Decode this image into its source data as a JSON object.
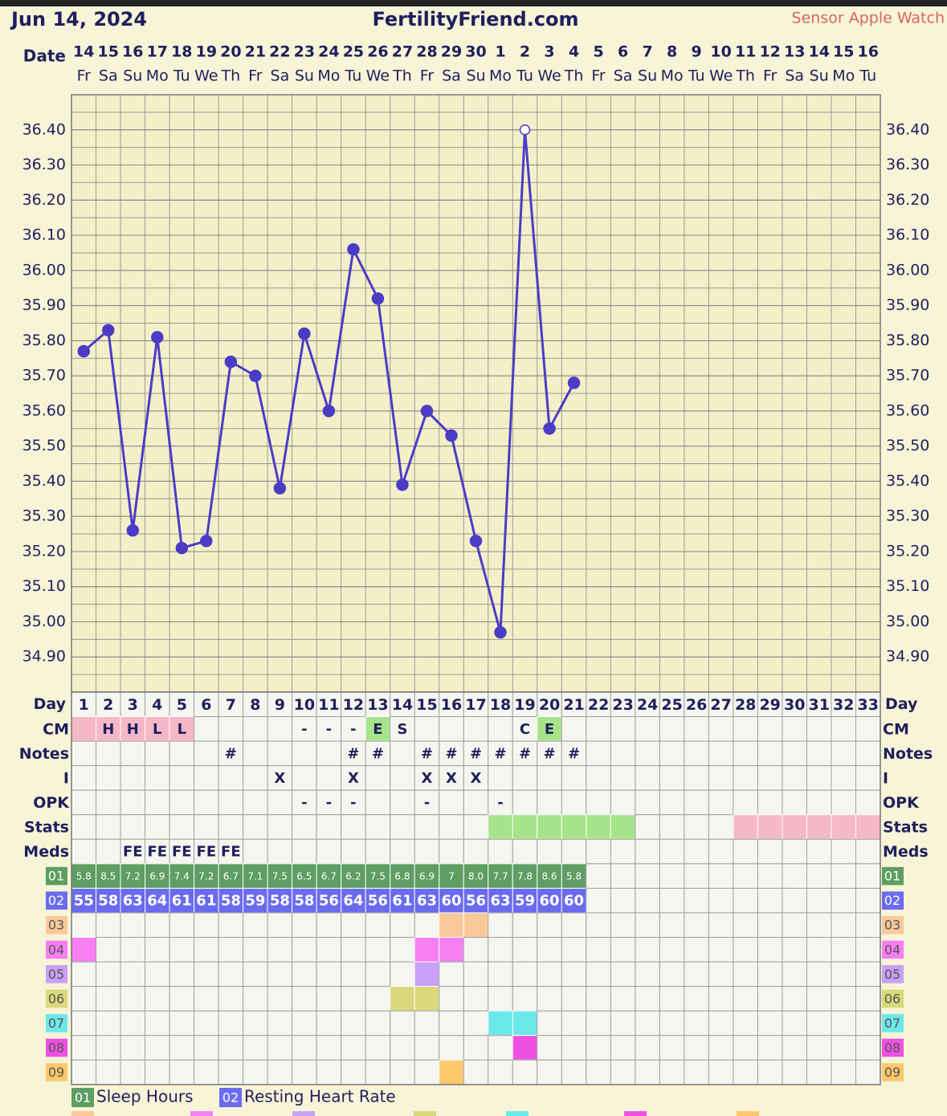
{
  "header": {
    "date": "Jun 14, 2024",
    "site": "FertilityFriend.com",
    "sensor": "Sensor Apple Watch"
  },
  "chart_data": {
    "type": "line",
    "x_label": "Date",
    "dates": [
      14,
      15,
      16,
      17,
      18,
      19,
      20,
      21,
      22,
      23,
      24,
      25,
      26,
      27,
      28,
      29,
      30,
      1,
      2,
      3,
      4,
      5,
      6,
      7,
      8,
      9,
      10,
      11,
      12,
      13,
      14,
      15,
      16
    ],
    "weekdays": [
      "Fr",
      "Sa",
      "Su",
      "Mo",
      "Tu",
      "We",
      "Th",
      "Fr",
      "Sa",
      "Su",
      "Mo",
      "Tu",
      "We",
      "Th",
      "Fr",
      "Sa",
      "Su",
      "Mo",
      "Tu",
      "We",
      "Th",
      "Fr",
      "Sa",
      "Su",
      "Mo",
      "Tu",
      "We",
      "Th",
      "Fr",
      "Sa",
      "Su",
      "Mo",
      "Tu"
    ],
    "ylim": [
      34.8,
      36.5
    ],
    "yticks": [
      {
        "value": 34.9,
        "label": "34.90"
      },
      {
        "value": 35.0,
        "label": "35.00"
      },
      {
        "value": 35.1,
        "label": "35.10"
      },
      {
        "value": 35.2,
        "label": "35.20"
      },
      {
        "value": 35.3,
        "label": "35.30"
      },
      {
        "value": 35.4,
        "label": "35.40"
      },
      {
        "value": 35.5,
        "label": "35.50"
      },
      {
        "value": 35.6,
        "label": "35.60"
      },
      {
        "value": 35.7,
        "label": "35.70"
      },
      {
        "value": 35.8,
        "label": "35.80"
      },
      {
        "value": 35.9,
        "label": "35.90"
      },
      {
        "value": 36.0,
        "label": "36.00"
      },
      {
        "value": 36.1,
        "label": "36.10"
      },
      {
        "value": 36.2,
        "label": "36.20"
      },
      {
        "value": 36.3,
        "label": "36.30"
      },
      {
        "value": 36.4,
        "label": "36.40"
      }
    ],
    "grid": true,
    "series": [
      {
        "color": "#4b3cc6",
        "open_markers": [
          18
        ],
        "values": [
          35.77,
          35.83,
          35.26,
          35.81,
          35.21,
          35.23,
          35.74,
          35.7,
          35.38,
          35.82,
          35.6,
          36.06,
          35.92,
          35.39,
          35.6,
          35.53,
          35.23,
          34.97,
          36.4,
          35.55,
          35.68,
          null,
          null,
          null,
          null,
          null,
          null,
          null,
          null,
          null,
          null,
          null,
          null
        ]
      }
    ]
  },
  "table": {
    "day_label": "Day",
    "days": [
      1,
      2,
      3,
      4,
      5,
      6,
      7,
      8,
      9,
      10,
      11,
      12,
      13,
      14,
      15,
      16,
      17,
      18,
      19,
      20,
      21,
      22,
      23,
      24,
      25,
      26,
      27,
      28,
      29,
      30,
      31,
      32,
      33
    ],
    "rows": [
      {
        "label": "CM",
        "cells": [
          null,
          "H",
          "H",
          "L",
          "L",
          null,
          null,
          null,
          null,
          "-",
          "-",
          "-",
          "E",
          "S",
          null,
          null,
          null,
          null,
          "C",
          "E",
          null,
          null,
          null,
          null,
          null,
          null,
          null,
          null,
          null,
          null,
          null,
          null,
          null
        ],
        "fills": [
          "#f5b8c9",
          "#f5b8c9",
          "#f5b8c9",
          "#f5b8c9",
          "#f5b8c9",
          null,
          null,
          null,
          null,
          null,
          null,
          null,
          "#a6e38a",
          null,
          null,
          null,
          null,
          null,
          null,
          "#a6e38a",
          null,
          null,
          null,
          null,
          null,
          null,
          null,
          null,
          null,
          null,
          null,
          null,
          null
        ]
      },
      {
        "label": "Notes",
        "cells": [
          null,
          null,
          null,
          null,
          null,
          null,
          "#",
          null,
          null,
          null,
          null,
          "#",
          "#",
          null,
          "#",
          "#",
          "#",
          "#",
          "#",
          "#",
          "#",
          null,
          null,
          null,
          null,
          null,
          null,
          null,
          null,
          null,
          null,
          null,
          null
        ]
      },
      {
        "label": "I",
        "cells": [
          null,
          null,
          null,
          null,
          null,
          null,
          null,
          null,
          "X",
          null,
          null,
          "X",
          null,
          null,
          "X",
          "X",
          "X",
          null,
          null,
          null,
          null,
          null,
          null,
          null,
          null,
          null,
          null,
          null,
          null,
          null,
          null,
          null,
          null
        ]
      },
      {
        "label": "OPK",
        "cells": [
          null,
          null,
          null,
          null,
          null,
          null,
          null,
          null,
          null,
          "-",
          "-",
          "-",
          null,
          null,
          "-",
          null,
          null,
          "-",
          null,
          null,
          null,
          null,
          null,
          null,
          null,
          null,
          null,
          null,
          null,
          null,
          null,
          null,
          null
        ]
      },
      {
        "label": "Stats",
        "fills": [
          null,
          null,
          null,
          null,
          null,
          null,
          null,
          null,
          null,
          null,
          null,
          null,
          null,
          null,
          null,
          null,
          null,
          "#a6e38a",
          "#a6e38a",
          "#a6e38a",
          "#a6e38a",
          "#a6e38a",
          "#a6e38a",
          null,
          null,
          null,
          null,
          "#f5b8c9",
          "#f5b8c9",
          "#f5b8c9",
          "#f5b8c9",
          "#f5b8c9",
          "#f5b8c9"
        ]
      },
      {
        "label": "Meds",
        "cells": [
          null,
          null,
          "FE",
          "FE",
          "FE",
          "FE",
          "FE",
          null,
          null,
          null,
          null,
          null,
          null,
          null,
          null,
          null,
          null,
          null,
          null,
          null,
          null,
          null,
          null,
          null,
          null,
          null,
          null,
          null,
          null,
          null,
          null,
          null,
          null
        ]
      },
      {
        "label": "01",
        "badge": "#5e9e62",
        "text_color": "#ffffff",
        "small": true,
        "cells": [
          "5.8",
          "8.5",
          "7.2",
          "6.9",
          "7.4",
          "7.2",
          "6.7",
          "7.1",
          "7.5",
          "6.5",
          "6.7",
          "6.2",
          "7.5",
          "6.8",
          "6.9",
          "7",
          "8.0",
          "7.7",
          "7.8",
          "8.6",
          "5.8",
          null,
          null,
          null,
          null,
          null,
          null,
          null,
          null,
          null,
          null,
          null,
          null
        ],
        "fills": [
          "#5e9e62",
          "#5e9e62",
          "#5e9e62",
          "#5e9e62",
          "#5e9e62",
          "#5e9e62",
          "#5e9e62",
          "#5e9e62",
          "#5e9e62",
          "#5e9e62",
          "#5e9e62",
          "#5e9e62",
          "#5e9e62",
          "#5e9e62",
          "#5e9e62",
          "#5e9e62",
          "#5e9e62",
          "#5e9e62",
          "#5e9e62",
          "#5e9e62",
          "#5e9e62",
          null,
          null,
          null,
          null,
          null,
          null,
          null,
          null,
          null,
          null,
          null,
          null
        ]
      },
      {
        "label": "02",
        "badge": "#6b6bf0",
        "text_color": "#ffffff",
        "cells": [
          "55",
          "58",
          "63",
          "64",
          "61",
          "61",
          "58",
          "59",
          "58",
          "58",
          "56",
          "64",
          "56",
          "61",
          "63",
          "60",
          "56",
          "63",
          "59",
          "60",
          "60",
          null,
          null,
          null,
          null,
          null,
          null,
          null,
          null,
          null,
          null,
          null,
          null
        ],
        "fills": [
          "#6b6bf0",
          "#6b6bf0",
          "#6b6bf0",
          "#6b6bf0",
          "#6b6bf0",
          "#6b6bf0",
          "#6b6bf0",
          "#6b6bf0",
          "#6b6bf0",
          "#6b6bf0",
          "#6b6bf0",
          "#6b6bf0",
          "#6b6bf0",
          "#6b6bf0",
          "#6b6bf0",
          "#6b6bf0",
          "#6b6bf0",
          "#6b6bf0",
          "#6b6bf0",
          "#6b6bf0",
          "#6b6bf0",
          null,
          null,
          null,
          null,
          null,
          null,
          null,
          null,
          null,
          null,
          null,
          null
        ]
      },
      {
        "label": "03",
        "badge": "#f9c99a",
        "fills": [
          null,
          null,
          null,
          null,
          null,
          null,
          null,
          null,
          null,
          null,
          null,
          null,
          null,
          null,
          null,
          "#f9c99a",
          "#f9c99a",
          null,
          null,
          null,
          null,
          null,
          null,
          null,
          null,
          null,
          null,
          null,
          null,
          null,
          null,
          null,
          null
        ]
      },
      {
        "label": "04",
        "badge": "#f77ff2",
        "fills": [
          "#f77ff2",
          null,
          null,
          null,
          null,
          null,
          null,
          null,
          null,
          null,
          null,
          null,
          null,
          null,
          "#f77ff2",
          "#f77ff2",
          null,
          null,
          null,
          null,
          null,
          null,
          null,
          null,
          null,
          null,
          null,
          null,
          null,
          null,
          null,
          null,
          null
        ]
      },
      {
        "label": "05",
        "badge": "#c8a0f7",
        "fills": [
          null,
          null,
          null,
          null,
          null,
          null,
          null,
          null,
          null,
          null,
          null,
          null,
          null,
          null,
          "#c8a0f7",
          null,
          null,
          null,
          null,
          null,
          null,
          null,
          null,
          null,
          null,
          null,
          null,
          null,
          null,
          null,
          null,
          null,
          null
        ]
      },
      {
        "label": "06",
        "badge": "#d9d97a",
        "fills": [
          null,
          null,
          null,
          null,
          null,
          null,
          null,
          null,
          null,
          null,
          null,
          null,
          null,
          "#d9d97a",
          "#d9d97a",
          null,
          null,
          null,
          null,
          null,
          null,
          null,
          null,
          null,
          null,
          null,
          null,
          null,
          null,
          null,
          null,
          null,
          null
        ]
      },
      {
        "label": "07",
        "badge": "#6be8ea",
        "fills": [
          null,
          null,
          null,
          null,
          null,
          null,
          null,
          null,
          null,
          null,
          null,
          null,
          null,
          null,
          null,
          null,
          null,
          "#6be8ea",
          "#6be8ea",
          null,
          null,
          null,
          null,
          null,
          null,
          null,
          null,
          null,
          null,
          null,
          null,
          null,
          null
        ]
      },
      {
        "label": "08",
        "badge": "#f04fe3",
        "fills": [
          null,
          null,
          null,
          null,
          null,
          null,
          null,
          null,
          null,
          null,
          null,
          null,
          null,
          null,
          null,
          null,
          null,
          null,
          "#f04fe3",
          null,
          null,
          null,
          null,
          null,
          null,
          null,
          null,
          null,
          null,
          null,
          null,
          null,
          null
        ]
      },
      {
        "label": "09",
        "badge": "#fcc86a",
        "fills": [
          null,
          null,
          null,
          null,
          null,
          null,
          null,
          null,
          null,
          null,
          null,
          null,
          null,
          null,
          null,
          "#fcc86a",
          null,
          null,
          null,
          null,
          null,
          null,
          null,
          null,
          null,
          null,
          null,
          null,
          null,
          null,
          null,
          null,
          null
        ]
      }
    ]
  },
  "legend": [
    {
      "code": "01",
      "label": "Sleep Hours",
      "color": "#5e9e62"
    },
    {
      "code": "02",
      "label": "Resting Heart Rate",
      "color": "#6b6bf0"
    }
  ]
}
